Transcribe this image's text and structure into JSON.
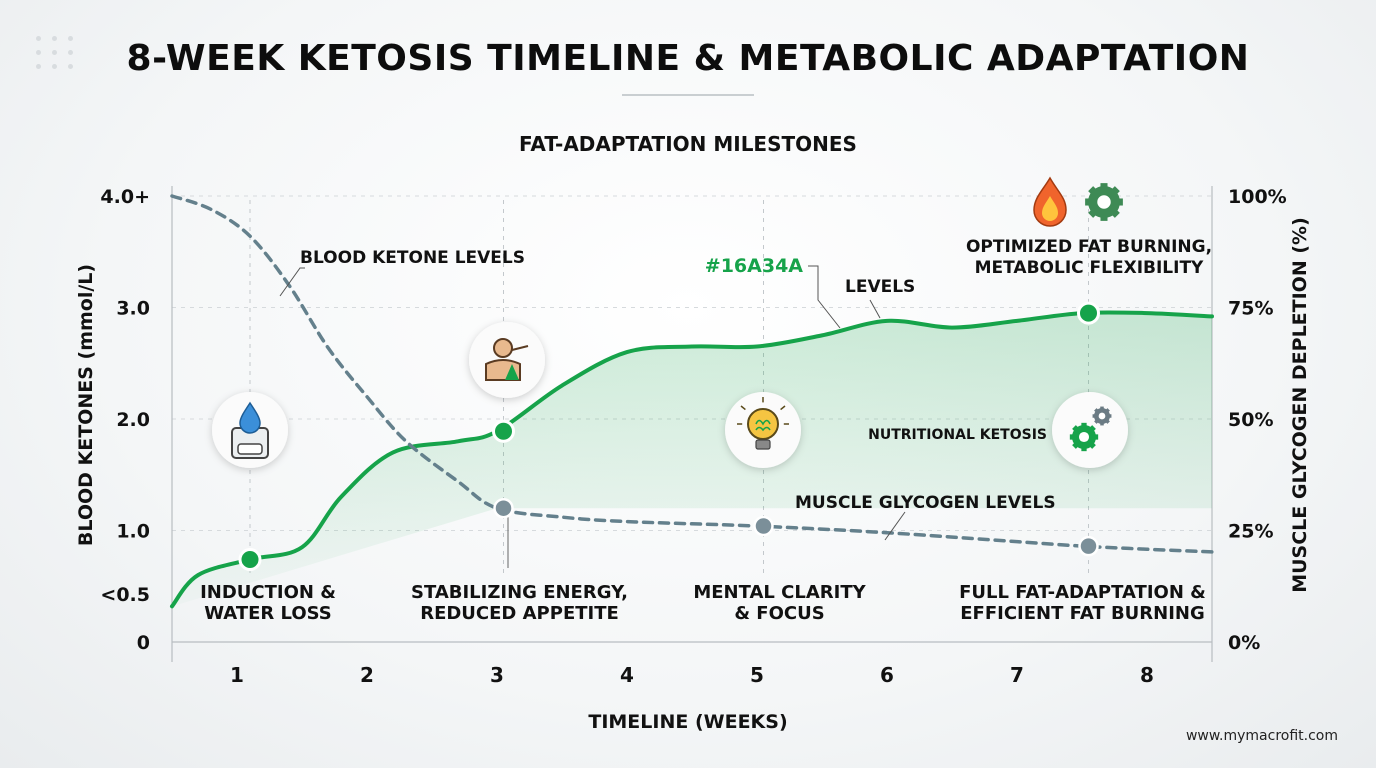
{
  "title": "8-WEEK KETOSIS TIMELINE & METABOLIC ADAPTATION",
  "website": "www.mymacrofit.com",
  "colors": {
    "ketone_line": "#16A34A",
    "glycogen_line": "#64808C",
    "fill": "#16A34A"
  },
  "chart_data": {
    "type": "line",
    "title": "FAT-ADAPTATION MILESTONES",
    "xlabel": "TIMELINE (WEEKS)",
    "ylabel": "BLOOD KETONES (mmol/L)",
    "y2label": "MUSCLE GLYCOGEN DEPLETION (%)",
    "x_ticks": [
      "1",
      "2",
      "3",
      "4",
      "5",
      "6",
      "7",
      "8"
    ],
    "xlim": [
      0.5,
      8.5
    ],
    "ylim": [
      0,
      4.0
    ],
    "y_ticks": [
      {
        "value": 0,
        "label": "0"
      },
      {
        "value": 0.45,
        "label": "<0.5"
      },
      {
        "value": 1.0,
        "label": "1.0"
      },
      {
        "value": 2.0,
        "label": "2.0"
      },
      {
        "value": 3.0,
        "label": "3.0"
      },
      {
        "value": 4.0,
        "label": "4.0+"
      }
    ],
    "y2_ticks": [
      "0%",
      "25%",
      "50%",
      "75%",
      "100%"
    ],
    "series": [
      {
        "name": "BLOOD KETONE LEVELS",
        "axis": "left",
        "style": "solid",
        "x": [
          0.5,
          0.7,
          1.1,
          1.5,
          1.8,
          2.2,
          2.7,
          3.0,
          3.5,
          4.0,
          4.5,
          5.0,
          5.5,
          6.0,
          6.5,
          7.0,
          7.5,
          8.0,
          8.5
        ],
        "y": [
          0.32,
          0.6,
          0.74,
          0.85,
          1.3,
          1.7,
          1.8,
          1.89,
          2.3,
          2.6,
          2.65,
          2.65,
          2.75,
          2.88,
          2.82,
          2.88,
          2.95,
          2.95,
          2.92
        ]
      },
      {
        "name": "MUSCLE GLYCOGEN LEVELS",
        "axis": "right",
        "style": "dashed",
        "x": [
          0.5,
          0.8,
          1.1,
          1.4,
          1.7,
          2.0,
          2.3,
          2.7,
          3.0,
          3.5,
          4.0,
          5.0,
          6.0,
          7.0,
          7.5,
          8.0,
          8.5
        ],
        "y": [
          100,
          97,
          91,
          80,
          66,
          55,
          45,
          36,
          30,
          28,
          27,
          26,
          24.5,
          22.5,
          21.5,
          20.8,
          20.2
        ]
      }
    ],
    "series_labels": {
      "ketone": "BLOOD KETONE LEVELS",
      "glycogen": "MUSCLE GLYCOGEN LEVELS",
      "color_note": "#16A34A",
      "levels": "LEVELS"
    },
    "milestones": [
      {
        "week": 1.1,
        "ketone": 0.74,
        "glycogen": null,
        "label": [
          "INDUCTION &",
          "WATER LOSS"
        ],
        "icon": "scale-water-drop-icon"
      },
      {
        "week": 3.05,
        "ketone": 1.89,
        "glycogen": 30,
        "label": [
          "STABILIZING ENERGY,",
          "REDUCED APPETITE"
        ],
        "icon": "person-eating-icon"
      },
      {
        "week": 5.05,
        "ketone": null,
        "glycogen": 26,
        "label": [
          "MENTAL CLARITY",
          "& FOCUS"
        ],
        "icon": "lightbulb-brain-icon"
      },
      {
        "week": 7.55,
        "ketone": 2.95,
        "glycogen": 21.5,
        "label": [
          "FULL FAT-ADAPTATION &",
          "EFFICIENT FAT BURNING"
        ],
        "icon": "gears-icon"
      }
    ],
    "annotations": {
      "nutritional_ketosis": "NUTRITIONAL KETOSIS",
      "optimized": [
        "OPTIMIZED FAT BURNING,",
        "METABOLIC FLEXIBILITY"
      ]
    },
    "grid": "dashed-horizontal"
  }
}
